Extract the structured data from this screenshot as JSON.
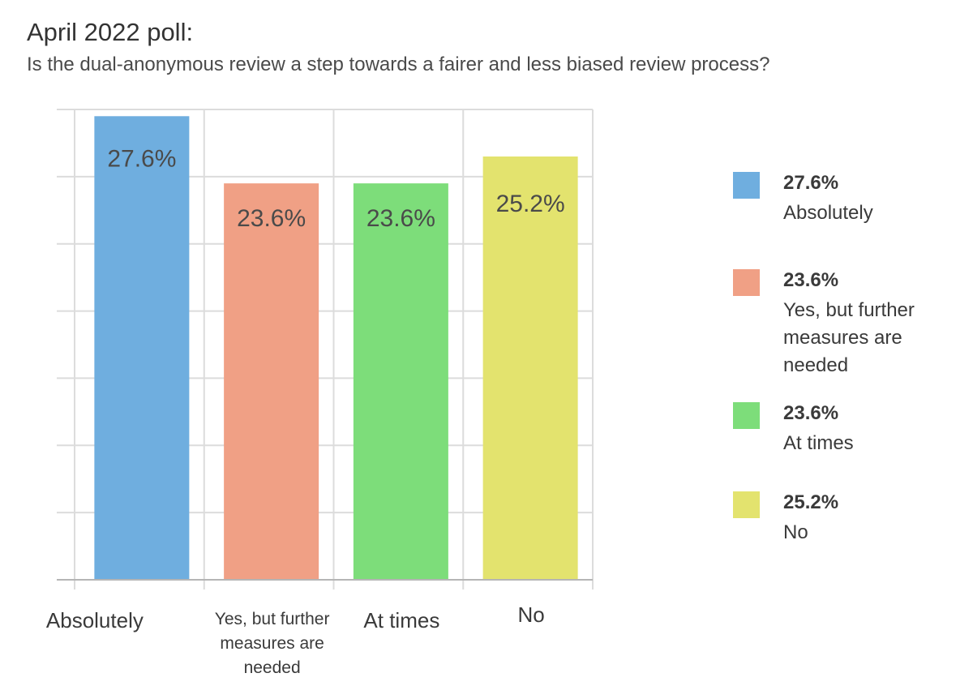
{
  "title": "April 2022 poll:",
  "subtitle": "Is the dual-anonymous review a step towards a fairer and less biased review process?",
  "chart_data": {
    "type": "bar",
    "categories": [
      "Absolutely",
      "Yes, but further measures are needed",
      "At times",
      "No"
    ],
    "values": [
      27.6,
      23.6,
      23.6,
      25.2
    ],
    "data_labels": [
      "27.6%",
      "23.6%",
      "23.6%",
      "25.2%"
    ],
    "colors": [
      "#6faedf",
      "#f0a085",
      "#7ddd7a",
      "#e3e36e"
    ],
    "ylim": [
      0,
      28
    ],
    "grid": true,
    "legend_position": "right"
  },
  "legend": [
    {
      "pct": "27.6%",
      "label": "Absolutely",
      "color": "#6faedf"
    },
    {
      "pct": "23.6%",
      "label": "Yes, but further measures are needed",
      "color": "#f0a085"
    },
    {
      "pct": "23.6%",
      "label": "At times",
      "color": "#7ddd7a"
    },
    {
      "pct": "25.2%",
      "label": "No",
      "color": "#e3e36e"
    }
  ]
}
